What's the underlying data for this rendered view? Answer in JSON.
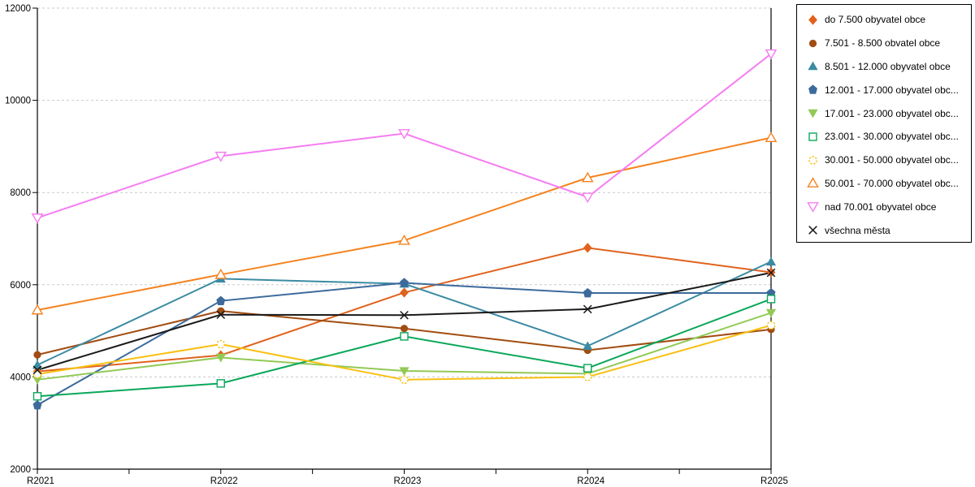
{
  "chart_data": {
    "type": "line",
    "title": "",
    "xlabel": "",
    "ylabel": "",
    "categories": [
      "R2021",
      "R2022",
      "R2023",
      "R2024",
      "R2025"
    ],
    "y_axis": {
      "ticks": [
        2000,
        4000,
        6000,
        8000,
        10000,
        12000
      ],
      "min": 2000,
      "max": 12000
    },
    "grid": "horizontal-dashed",
    "legend_position": "top-right",
    "series": [
      {
        "name": "do 7.500 obyvatel obce",
        "marker": "diamond",
        "fill": "filled",
        "color": "#e0621d",
        "values": [
          4120,
          4470,
          5830,
          6800,
          6270
        ]
      },
      {
        "name": "7.501 - 8.500 obvatel obce",
        "marker": "circle",
        "fill": "filled",
        "color": "#a14c10",
        "values": [
          4480,
          5430,
          5050,
          4580,
          5030
        ]
      },
      {
        "name": "8.501 - 12.000 obyvatel obce",
        "marker": "triangle-up",
        "fill": "filled",
        "color": "#3b8ba3",
        "values": [
          4260,
          6130,
          6020,
          4670,
          6500
        ]
      },
      {
        "name": "12.001 - 17.000 obyvatel obc...",
        "marker": "pentagon",
        "fill": "filled",
        "color": "#3c6a9b",
        "values": [
          3390,
          5650,
          6040,
          5820,
          5820
        ]
      },
      {
        "name": "17.001 - 23.000 obyvatel obc...",
        "marker": "triangle-down",
        "fill": "filled",
        "color": "#92c956",
        "values": [
          3940,
          4420,
          4130,
          4070,
          5390
        ]
      },
      {
        "name": "23.001 - 30.000 obyvatel obc...",
        "marker": "square",
        "fill": "open",
        "color": "#0aa75a",
        "values": [
          3580,
          3860,
          4880,
          4190,
          5690
        ]
      },
      {
        "name": "30.001 - 50.000 obyvatel obc...",
        "marker": "circle",
        "fill": "open",
        "dashed": true,
        "color": "#f8c012",
        "values": [
          4060,
          4710,
          3940,
          4000,
          5120
        ]
      },
      {
        "name": "50.001 - 70.000 obyvatel obc...",
        "marker": "triangle-up",
        "fill": "open",
        "color": "#f5831f",
        "values": [
          5450,
          6220,
          6960,
          8320,
          9190
        ]
      },
      {
        "name": "nad 70.001 obyvatel obce",
        "marker": "triangle-down",
        "fill": "open",
        "color": "#f57cf2",
        "values": [
          7450,
          8790,
          9280,
          7900,
          11010
        ]
      },
      {
        "name": "všechna města",
        "marker": "x",
        "fill": "line",
        "color": "#1a1a1a",
        "values": [
          4150,
          5350,
          5340,
          5470,
          6260
        ]
      }
    ]
  }
}
